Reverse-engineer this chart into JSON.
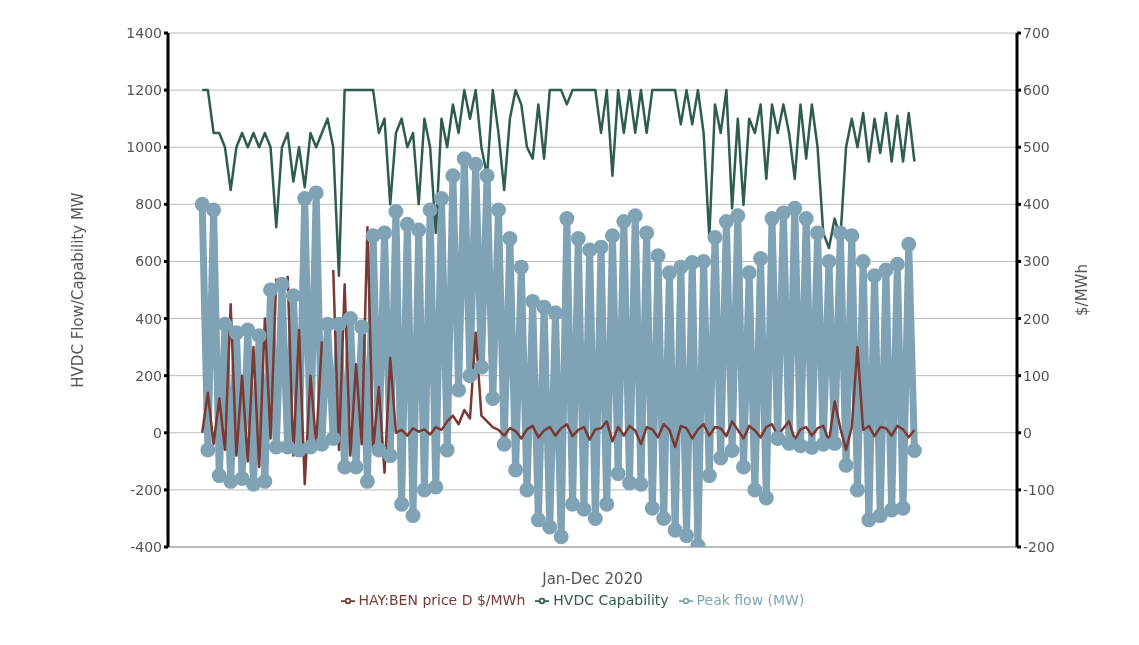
{
  "chart_data": {
    "type": "line",
    "xlabel": "Jan-Dec 2020",
    "ylabel": "HVDC Flow/Capability MW",
    "y2label": "$/MWh",
    "categories": [
      null,
      null,
      null,
      null,
      null,
      null,
      null,
      null,
      null,
      null,
      null,
      null,
      null,
      null,
      null,
      null,
      null,
      null,
      null,
      null,
      null,
      null,
      null,
      null,
      null,
      null,
      null,
      null,
      null,
      null,
      null,
      null,
      null,
      null,
      null,
      null,
      null,
      null,
      null,
      null,
      null,
      null,
      null,
      null,
      null,
      null,
      null,
      null,
      null,
      null,
      null,
      null,
      null,
      null,
      null,
      null,
      null,
      null,
      null,
      null,
      null,
      null,
      null,
      null,
      null,
      null,
      null,
      null,
      null,
      null,
      null,
      null,
      null,
      null,
      null,
      null,
      null,
      null,
      null,
      null,
      null,
      null,
      null,
      null,
      null,
      null,
      null,
      null,
      null,
      null,
      null,
      null,
      null,
      null,
      null,
      null,
      null,
      null,
      null,
      null,
      null,
      null,
      null,
      null,
      null,
      null,
      null,
      null,
      null,
      null,
      null,
      null,
      null,
      null,
      null,
      null,
      null,
      null,
      null,
      null,
      null,
      null,
      null,
      null,
      null,
      null,
      null,
      null,
      null,
      null,
      null,
      null,
      null,
      null,
      null,
      null,
      null,
      null,
      null,
      null,
      null,
      null,
      null,
      null,
      null,
      null,
      null,
      null,
      null,
      null
    ],
    "series": [
      {
        "name": "Peak flow (MW)",
        "color": "#7fa3b5",
        "marker": "circle",
        "values": [
          null,
          null,
          null,
          null,
          null,
          null,
          800,
          -60,
          780,
          -150,
          380,
          -170,
          350,
          -160,
          360,
          -180,
          340,
          -170,
          500,
          -50,
          520,
          -50,
          480,
          -60,
          820,
          -50,
          840,
          -40,
          380,
          -20,
          380,
          -120,
          400,
          -120,
          370,
          -170,
          690,
          -60,
          700,
          -80,
          775,
          -250,
          730,
          -290,
          710,
          -200,
          780,
          -190,
          820,
          -60,
          900,
          150,
          960,
          200,
          940,
          230,
          900,
          120,
          780,
          -40,
          680,
          -130,
          580,
          -200,
          460,
          -305,
          440,
          -330,
          420,
          -364,
          750,
          -250,
          680,
          -268,
          640,
          -300,
          650,
          -250,
          690,
          -143,
          740,
          -176,
          760,
          -180,
          700,
          -264,
          620,
          -300,
          560,
          -341,
          580,
          -360,
          596,
          -395,
          600,
          -150,
          684,
          -88,
          740,
          -62,
          760,
          -120,
          560,
          -200,
          610,
          -228,
          750,
          -20,
          770,
          -37,
          786,
          -45,
          750,
          -51,
          700,
          -40,
          600,
          -37,
          700,
          -114,
          690,
          -200,
          600,
          -305,
          550,
          -290,
          570,
          -270,
          590,
          -264,
          660,
          -62,
          null,
          null,
          null,
          null,
          null,
          null,
          null,
          null,
          null,
          null,
          null,
          null,
          null,
          null,
          null,
          null,
          null,
          null
        ]
      },
      {
        "name": "HVDC Capability",
        "color": "#2f5c50",
        "marker": "none",
        "values": [
          null,
          null,
          null,
          null,
          null,
          null,
          1200,
          1200,
          1050,
          1050,
          1000,
          850,
          1000,
          1050,
          1000,
          1050,
          1000,
          1050,
          1000,
          720,
          1000,
          1050,
          880,
          1000,
          860,
          1050,
          1000,
          1050,
          1100,
          1000,
          550,
          1200,
          1200,
          1200,
          1200,
          1200,
          1200,
          1050,
          1100,
          800,
          1050,
          1100,
          1000,
          1050,
          800,
          1100,
          1000,
          700,
          1100,
          1000,
          1150,
          1050,
          1200,
          1100,
          1200,
          1000,
          900,
          1200,
          1050,
          850,
          1100,
          1200,
          1150,
          1000,
          960,
          1150,
          960,
          1200,
          1200,
          1200,
          1150,
          1200,
          1200,
          1200,
          1200,
          1200,
          1050,
          1200,
          900,
          1200,
          1050,
          1200,
          1050,
          1200,
          1050,
          1200,
          1200,
          1200,
          1200,
          1200,
          1080,
          1200,
          1080,
          1200,
          1050,
          684,
          1150,
          1050,
          1200,
          786,
          1100,
          798,
          1100,
          1050,
          1150,
          889,
          1150,
          1050,
          1150,
          1050,
          889,
          1150,
          960,
          1150,
          1000,
          700,
          647,
          750,
          680,
          1000,
          1100,
          1000,
          1120,
          950,
          1100,
          980,
          1120,
          950,
          1110,
          950,
          1120,
          950,
          null,
          null,
          null,
          null,
          null,
          null,
          null,
          null,
          null,
          null,
          null,
          null,
          null,
          null,
          null,
          null,
          null,
          null
        ]
      },
      {
        "name": "HAY:BEN price D $/MWh",
        "color": "#7a3a33",
        "marker": "none",
        "axis": "y2",
        "values": [
          null,
          null,
          null,
          null,
          null,
          null,
          0,
          70,
          -20,
          60,
          -30,
          225,
          -40,
          100,
          -50,
          150,
          -60,
          200,
          -10,
          270,
          null,
          275,
          -40,
          180,
          -90,
          100,
          -20,
          160,
          null,
          285,
          -30,
          260,
          -40,
          120,
          -20,
          360,
          -30,
          80,
          -70,
          131,
          0,
          5,
          -5,
          8,
          2,
          6,
          -3,
          10,
          5,
          20,
          30,
          15,
          40,
          25,
          175,
          30,
          20,
          10,
          5,
          -5,
          8,
          3,
          -10,
          6,
          12,
          -8,
          4,
          10,
          -5,
          8,
          15,
          -6,
          5,
          10,
          -12,
          6,
          8,
          20,
          -15,
          10,
          -5,
          12,
          4,
          -20,
          10,
          6,
          -8,
          15,
          5,
          -25,
          12,
          8,
          -10,
          6,
          15,
          -5,
          10,
          8,
          -6,
          20,
          5,
          -10,
          12,
          4,
          -8,
          10,
          15,
          -5,
          8,
          20,
          -12,
          6,
          10,
          -5,
          8,
          12,
          -15,
          55,
          8,
          -30,
          10,
          150,
          5,
          12,
          -6,
          10,
          8,
          -5,
          12,
          6,
          -8,
          5,
          null,
          null,
          null,
          null,
          null,
          null,
          null,
          null,
          null,
          null,
          null,
          null,
          null,
          null,
          null,
          null,
          null,
          null
        ]
      }
    ],
    "ylim": [
      -400,
      1400
    ],
    "yticks": [
      -400,
      -200,
      0,
      200,
      400,
      600,
      800,
      1000,
      1200,
      1400
    ],
    "y2lim": [
      -200,
      700
    ],
    "y2ticks": [
      -200,
      -100,
      0,
      100,
      200,
      300,
      400,
      500,
      600,
      700
    ],
    "grid": "y",
    "legend": "bottom",
    "line_style": "solid"
  }
}
